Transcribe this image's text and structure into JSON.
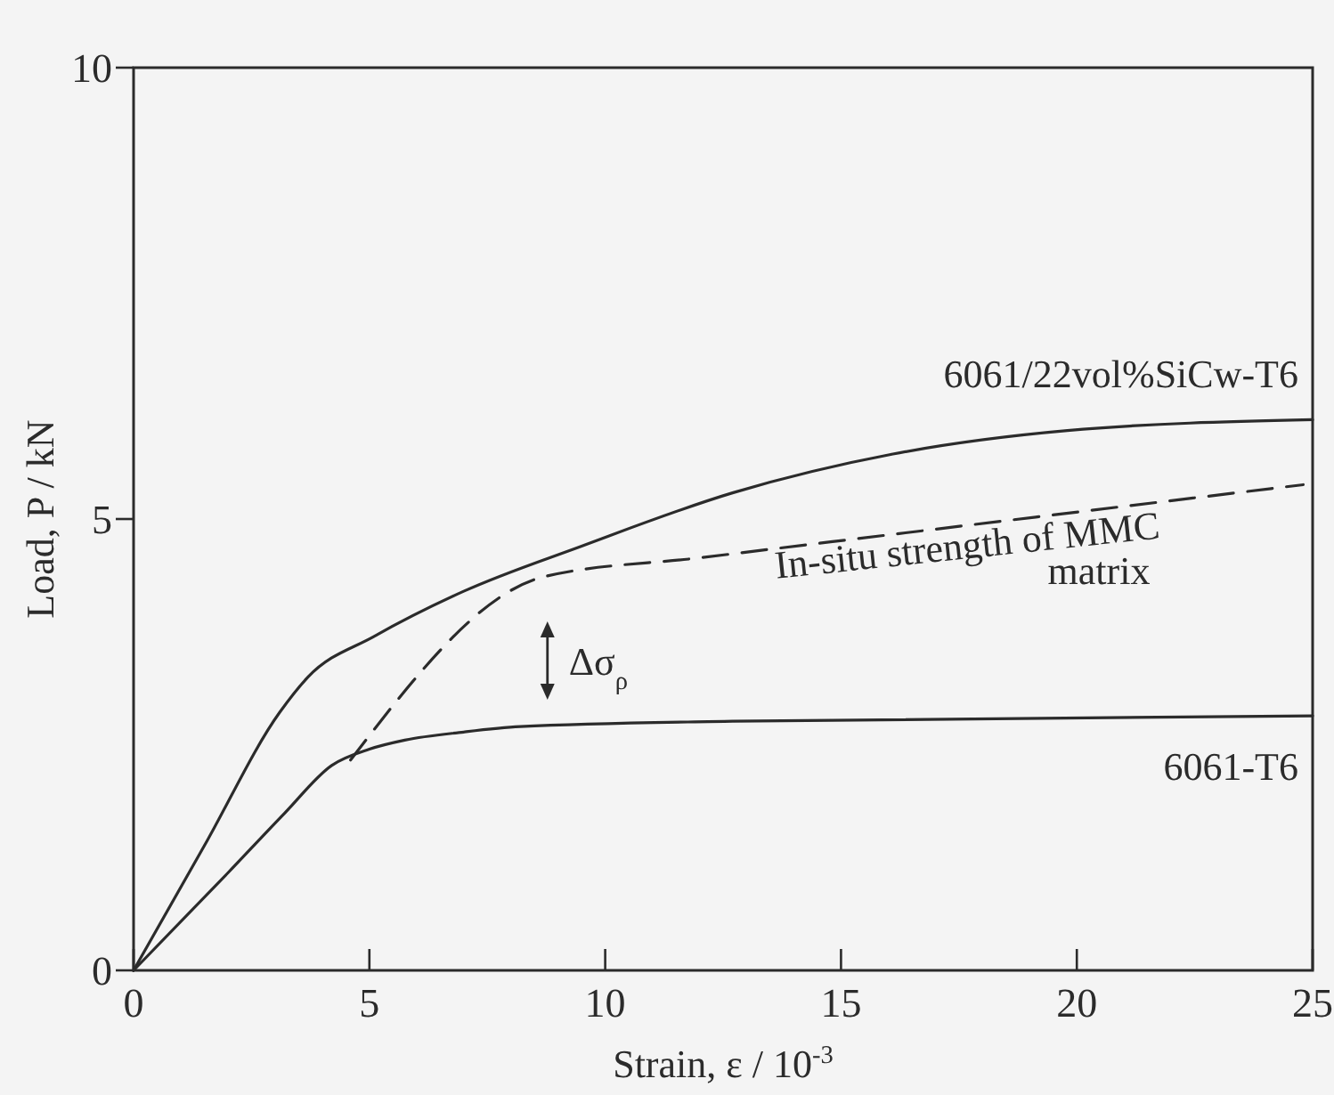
{
  "chart_data": {
    "type": "line",
    "xlabel": "Strain, ε / 10$^{-3}$",
    "ylabel": "Load, P / kN",
    "xlim": [
      0,
      25
    ],
    "xticks": [
      0,
      5,
      10,
      15,
      20,
      25
    ],
    "ylim": [
      0,
      10
    ],
    "yticks": [
      0,
      5,
      10
    ],
    "grid": false,
    "series": [
      {
        "name": "6061/22vol%SiCw-T6",
        "color": "#2b2b2b",
        "x": [
          0,
          1.5,
          3.1,
          3.7,
          5.1,
          7.0,
          9.5,
          12.7,
          16.1,
          19.8,
          25
        ],
        "values": [
          0,
          1.38,
          2.86,
          3.25,
          3.7,
          4.2,
          4.7,
          5.29,
          5.72,
          5.98,
          6.1
        ]
      },
      {
        "name": "In-situ strength of MMC matrix",
        "color": "#2b2b2b",
        "line_style": "dashed",
        "x": [
          4.6,
          8.7,
          12,
          24.8
        ],
        "values": [
          2.33,
          4.36,
          4.57,
          5.38
        ]
      },
      {
        "name": "6061-T6",
        "color": "#2b2b2b",
        "x": [
          0,
          2,
          3.2,
          4.2,
          5,
          5.75,
          7,
          8.2,
          12.7,
          25
        ],
        "values": [
          0,
          1.08,
          1.74,
          2.27,
          2.45,
          2.55,
          2.64,
          2.7,
          2.76,
          2.82
        ]
      }
    ],
    "annotations": [
      "Δσ$_{ρ}$"
    ]
  }
}
